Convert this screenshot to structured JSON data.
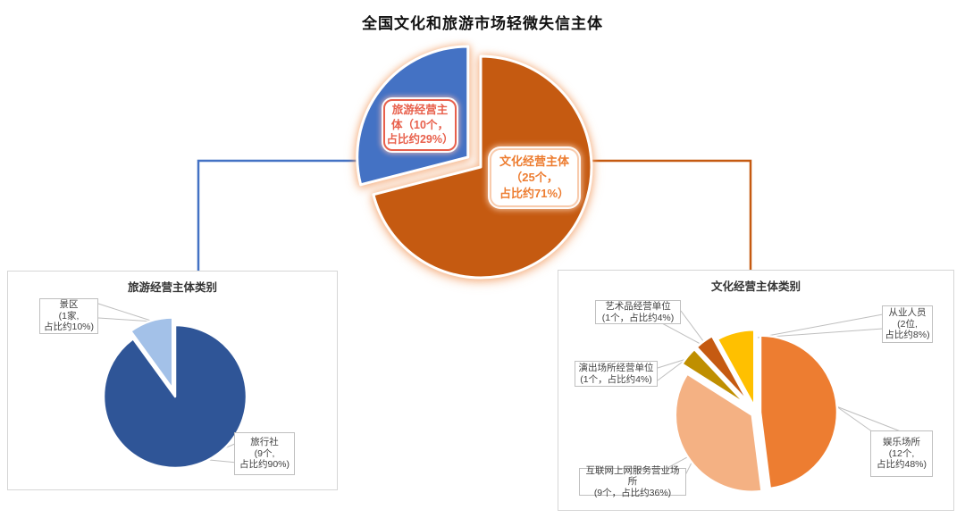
{
  "title": "全国文化和旅游市场轻微失信主体",
  "colors": {
    "culture_accent": "#C55A11",
    "tourism_accent": "#4472C4",
    "leader_gray": "#BFBFBF",
    "panel_border": "#D6D6D6",
    "tourism_label_red": "#E8604C",
    "culture_label_orange": "#ED7D31",
    "slice_gap_white": "#FFFFFF"
  },
  "main_pie": {
    "tourism_label": "旅游经营主\n体（10个，\n占比约29%）",
    "culture_label": "文化经营主体\n（25个，\n占比约71%）"
  },
  "tourism_panel": {
    "title": "旅游经营主体类别",
    "callouts": {
      "scenic": "景区\n(1家,\n占比约10%)",
      "travel": "旅行社\n(9个,\n占比约90%)"
    }
  },
  "culture_panel": {
    "title": "文化经营主体类别",
    "callouts": {
      "art": "艺术品经营单位\n(1个，占比约4%)",
      "staff": "从业人员\n(2位,\n占比约8%)",
      "perform": "演出场所经营单位\n(1个，占比约4%)",
      "internet": "互联网上网服务营业场所\n(9个，占比约36%)",
      "entertain": "娱乐场所\n(12个,\n占比约48%)"
    }
  },
  "chart_data": [
    {
      "type": "pie",
      "title": "全国文化和旅游市场轻微失信主体",
      "labels": [
        "文化经营主体",
        "旅游经营主体"
      ],
      "values": [
        71,
        29
      ],
      "counts": [
        "25个",
        "10个"
      ],
      "percent_labels": [
        "占比约71%",
        "占比约29%"
      ],
      "colors": [
        "#C55A11",
        "#4472C4"
      ],
      "start_angle_deg": 0,
      "exploded": [
        false,
        true
      ],
      "legend_position": "none"
    },
    {
      "type": "pie",
      "title": "旅游经营主体类别",
      "labels": [
        "旅行社",
        "景区"
      ],
      "values": [
        90,
        10
      ],
      "counts": [
        "9个",
        "1家"
      ],
      "percent_labels": [
        "占比约90%",
        "占比约10%"
      ],
      "colors": [
        "#2F5597",
        "#A3C1E8"
      ],
      "start_angle_deg": 0,
      "exploded": [
        false,
        true
      ],
      "legend_position": "none"
    },
    {
      "type": "pie",
      "title": "文化经营主体类别",
      "labels": [
        "娱乐场所",
        "互联网上网服务营业场所",
        "演出场所经营单位",
        "艺术品经营单位",
        "从业人员"
      ],
      "values": [
        48,
        36,
        4,
        4,
        8
      ],
      "counts": [
        "12个",
        "9个",
        "1个",
        "1个",
        "2位"
      ],
      "percent_labels": [
        "占比约48%",
        "占比约36%",
        "占比约4%",
        "占比约4%",
        "占比约8%"
      ],
      "colors": [
        "#ED7D31",
        "#F4B183",
        "#BF8F00",
        "#C55A11",
        "#FFC000"
      ],
      "start_angle_deg": 0,
      "exploded": [
        false,
        false,
        true,
        true,
        true
      ],
      "legend_position": "none"
    }
  ]
}
